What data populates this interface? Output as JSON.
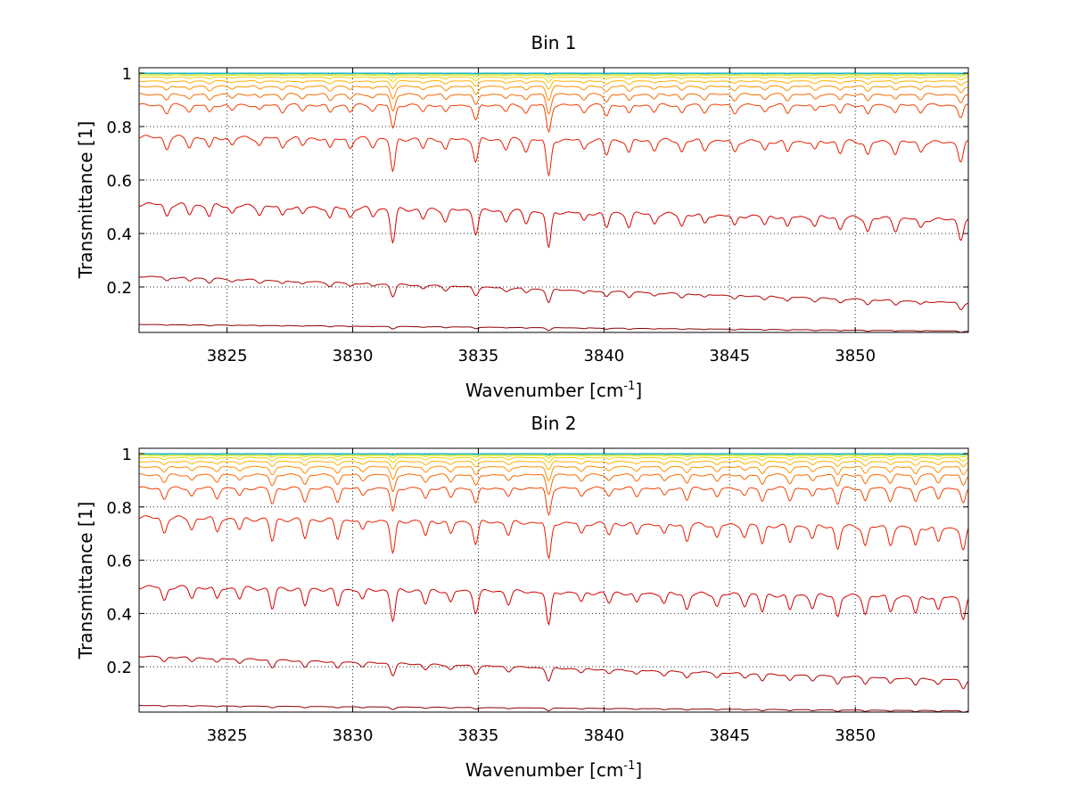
{
  "chart_data": [
    {
      "type": "line",
      "title": "Bin 1",
      "xlabel_main": "Wavenumber [cm",
      "xlabel_sup": "-1",
      "xlabel_end": "]",
      "ylabel": "Transmittance [1]",
      "xlim": [
        3821.5,
        3854.5
      ],
      "ylim": [
        0.03,
        1.02
      ],
      "xticks": [
        3825,
        3830,
        3835,
        3840,
        3845,
        3850
      ],
      "yticks": [
        0.2,
        0.4,
        0.6,
        0.8,
        1
      ],
      "ytick_labels": [
        "0.2",
        "0.4",
        "0.6",
        "0.8",
        "1"
      ],
      "grid": true,
      "series": [
        {
          "color": "#8b0000",
          "base_start": 0.06,
          "base_end": 0.035,
          "depth": 0.01
        },
        {
          "color": "#b50000",
          "base_start": 0.24,
          "base_end": 0.14,
          "depth": 0.05
        },
        {
          "color": "#d40000",
          "base_start": 0.51,
          "base_end": 0.45,
          "depth": 0.14
        },
        {
          "color": "#e81e00",
          "base_start": 0.76,
          "base_end": 0.74,
          "depth": 0.14
        },
        {
          "color": "#f04000",
          "base_start": 0.88,
          "base_end": 0.88,
          "depth": 0.1
        },
        {
          "color": "#f86a00",
          "base_start": 0.92,
          "base_end": 0.92,
          "depth": 0.07
        },
        {
          "color": "#ff9000",
          "base_start": 0.95,
          "base_end": 0.95,
          "depth": 0.05
        },
        {
          "color": "#ffb000",
          "base_start": 0.97,
          "base_end": 0.97,
          "depth": 0.03
        },
        {
          "color": "#f5d000",
          "base_start": 0.985,
          "base_end": 0.985,
          "depth": 0.02
        },
        {
          "color": "#d8e000",
          "base_start": 0.993,
          "base_end": 0.993,
          "depth": 0.01
        },
        {
          "color": "#90e060",
          "base_start": 0.997,
          "base_end": 0.997,
          "depth": 0.005
        },
        {
          "color": "#30c8a0",
          "base_start": 0.999,
          "base_end": 0.999,
          "depth": 0.003
        },
        {
          "color": "#00a8e0",
          "base_start": 1.0,
          "base_end": 1.0,
          "depth": 0.002
        }
      ],
      "absorption_lines": [
        {
          "x": 3822.6,
          "s": 0.3
        },
        {
          "x": 3823.5,
          "s": 0.25
        },
        {
          "x": 3824.3,
          "s": 0.3
        },
        {
          "x": 3825.2,
          "s": 0.2
        },
        {
          "x": 3826.3,
          "s": 0.2
        },
        {
          "x": 3827.2,
          "s": 0.25
        },
        {
          "x": 3828.0,
          "s": 0.2
        },
        {
          "x": 3829.1,
          "s": 0.3
        },
        {
          "x": 3829.9,
          "s": 0.25
        },
        {
          "x": 3830.8,
          "s": 0.2
        },
        {
          "x": 3831.6,
          "s": 0.9
        },
        {
          "x": 3832.8,
          "s": 0.25
        },
        {
          "x": 3833.7,
          "s": 0.3
        },
        {
          "x": 3834.9,
          "s": 0.6
        },
        {
          "x": 3836.1,
          "s": 0.25
        },
        {
          "x": 3836.9,
          "s": 0.3
        },
        {
          "x": 3837.8,
          "s": 1.0
        },
        {
          "x": 3839.2,
          "s": 0.25
        },
        {
          "x": 3840.1,
          "s": 0.4
        },
        {
          "x": 3841.0,
          "s": 0.35
        },
        {
          "x": 3842.0,
          "s": 0.25
        },
        {
          "x": 3843.1,
          "s": 0.3
        },
        {
          "x": 3844.0,
          "s": 0.25
        },
        {
          "x": 3845.2,
          "s": 0.3
        },
        {
          "x": 3846.4,
          "s": 0.25
        },
        {
          "x": 3847.3,
          "s": 0.3
        },
        {
          "x": 3848.4,
          "s": 0.25
        },
        {
          "x": 3849.4,
          "s": 0.3
        },
        {
          "x": 3850.5,
          "s": 0.35
        },
        {
          "x": 3851.6,
          "s": 0.3
        },
        {
          "x": 3852.6,
          "s": 0.25
        },
        {
          "x": 3854.2,
          "s": 0.5
        }
      ]
    },
    {
      "type": "line",
      "title": "Bin 2",
      "xlabel_main": "Wavenumber [cm",
      "xlabel_sup": "-1",
      "xlabel_end": "]",
      "ylabel": "Transmittance [1]",
      "xlim": [
        3821.5,
        3854.5
      ],
      "ylim": [
        0.03,
        1.02
      ],
      "xticks": [
        3825,
        3830,
        3835,
        3840,
        3845,
        3850
      ],
      "yticks": [
        0.2,
        0.4,
        0.6,
        0.8,
        1
      ],
      "ytick_labels": [
        "0.2",
        "0.4",
        "0.6",
        "0.8",
        "1"
      ],
      "grid": true,
      "series": [
        {
          "color": "#8b0000",
          "base_start": 0.055,
          "base_end": 0.035,
          "depth": 0.01
        },
        {
          "color": "#b50000",
          "base_start": 0.24,
          "base_end": 0.15,
          "depth": 0.05
        },
        {
          "color": "#d40000",
          "base_start": 0.5,
          "base_end": 0.46,
          "depth": 0.13
        },
        {
          "color": "#e81e00",
          "base_start": 0.76,
          "base_end": 0.72,
          "depth": 0.14
        },
        {
          "color": "#f04000",
          "base_start": 0.87,
          "base_end": 0.87,
          "depth": 0.1
        },
        {
          "color": "#f86a00",
          "base_start": 0.92,
          "base_end": 0.92,
          "depth": 0.07
        },
        {
          "color": "#ff9000",
          "base_start": 0.95,
          "base_end": 0.95,
          "depth": 0.05
        },
        {
          "color": "#ffb000",
          "base_start": 0.97,
          "base_end": 0.97,
          "depth": 0.03
        },
        {
          "color": "#f5d000",
          "base_start": 0.985,
          "base_end": 0.985,
          "depth": 0.02
        },
        {
          "color": "#d8e000",
          "base_start": 0.993,
          "base_end": 0.993,
          "depth": 0.01
        },
        {
          "color": "#90e060",
          "base_start": 0.997,
          "base_end": 0.997,
          "depth": 0.005
        },
        {
          "color": "#30c8a0",
          "base_start": 0.999,
          "base_end": 0.999,
          "depth": 0.003
        },
        {
          "color": "#00a8e0",
          "base_start": 1.0,
          "base_end": 1.0,
          "depth": 0.002
        }
      ],
      "absorption_lines": [
        {
          "x": 3822.5,
          "s": 0.4
        },
        {
          "x": 3823.6,
          "s": 0.3
        },
        {
          "x": 3824.6,
          "s": 0.35
        },
        {
          "x": 3825.5,
          "s": 0.3
        },
        {
          "x": 3826.8,
          "s": 0.6
        },
        {
          "x": 3828.1,
          "s": 0.5
        },
        {
          "x": 3829.4,
          "s": 0.5
        },
        {
          "x": 3830.4,
          "s": 0.3
        },
        {
          "x": 3831.6,
          "s": 0.9
        },
        {
          "x": 3832.9,
          "s": 0.4
        },
        {
          "x": 3833.9,
          "s": 0.35
        },
        {
          "x": 3834.9,
          "s": 0.6
        },
        {
          "x": 3836.2,
          "s": 0.35
        },
        {
          "x": 3837.8,
          "s": 1.0
        },
        {
          "x": 3839.1,
          "s": 0.3
        },
        {
          "x": 3840.2,
          "s": 0.3
        },
        {
          "x": 3841.3,
          "s": 0.3
        },
        {
          "x": 3842.4,
          "s": 0.3
        },
        {
          "x": 3843.3,
          "s": 0.45
        },
        {
          "x": 3844.5,
          "s": 0.35
        },
        {
          "x": 3845.6,
          "s": 0.3
        },
        {
          "x": 3846.3,
          "s": 0.5
        },
        {
          "x": 3847.4,
          "s": 0.45
        },
        {
          "x": 3848.3,
          "s": 0.35
        },
        {
          "x": 3849.3,
          "s": 0.6
        },
        {
          "x": 3850.4,
          "s": 0.5
        },
        {
          "x": 3851.4,
          "s": 0.45
        },
        {
          "x": 3852.4,
          "s": 0.5
        },
        {
          "x": 3853.3,
          "s": 0.4
        },
        {
          "x": 3854.3,
          "s": 0.6
        }
      ]
    }
  ]
}
